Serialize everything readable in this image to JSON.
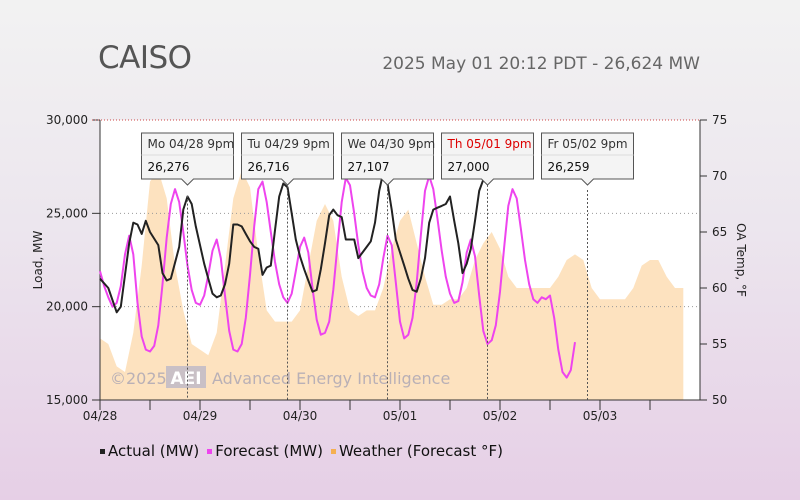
{
  "title": "CAISO",
  "subtitle": "2025 May 01 20:12 PDT - 26,624 MW",
  "watermark": {
    "year": "©2025",
    "logo": "AEI",
    "company": "Advanced Energy Intelligence"
  },
  "legend": {
    "actual": "Actual (MW)",
    "forecast": "Forecast (MW)",
    "weather": "Weather (Forecast °F)"
  },
  "colors": {
    "actual": "#222222",
    "forecast": "#ee44ee",
    "weather": "#fde2bf",
    "weather_legend": "#f5b050"
  },
  "chart_data": {
    "type": "line",
    "x_unit": "hours since 04/28 00:00",
    "xlim": [
      0,
      144
    ],
    "x_ticks": [
      {
        "x": 0,
        "label": "04/28"
      },
      {
        "x": 24,
        "label": "04/29"
      },
      {
        "x": 48,
        "label": "04/30"
      },
      {
        "x": 72,
        "label": "05/01"
      },
      {
        "x": 96,
        "label": "05/02"
      },
      {
        "x": 120,
        "label": "05/03"
      }
    ],
    "ylabel": "Load, MW",
    "ylim": [
      15000,
      30000
    ],
    "y_ticks": [
      "15,000",
      "20,000",
      "25,000",
      "30,000"
    ],
    "y2label": "OA Temp, °F",
    "y2lim": [
      50,
      75
    ],
    "y2_ticks": [
      "50",
      "55",
      "60",
      "65",
      "70",
      "75"
    ],
    "series": [
      {
        "name": "Actual (MW)",
        "points": [
          [
            0,
            21500
          ],
          [
            2,
            21000
          ],
          [
            4,
            19700
          ],
          [
            5,
            20000
          ],
          [
            7,
            23400
          ],
          [
            8,
            24500
          ],
          [
            9,
            24400
          ],
          [
            10,
            23900
          ],
          [
            11,
            24600
          ],
          [
            12,
            24000
          ],
          [
            14,
            23300
          ],
          [
            15,
            21800
          ],
          [
            16,
            21400
          ],
          [
            17,
            21500
          ],
          [
            19,
            23200
          ],
          [
            20,
            25200
          ],
          [
            21,
            25900
          ],
          [
            22,
            25500
          ],
          [
            23,
            24300
          ],
          [
            25,
            22300
          ],
          [
            26,
            21500
          ],
          [
            27,
            20700
          ],
          [
            28,
            20500
          ],
          [
            29,
            20600
          ],
          [
            30,
            21200
          ],
          [
            31,
            22300
          ],
          [
            32,
            24400
          ],
          [
            33,
            24400
          ],
          [
            34,
            24300
          ],
          [
            35,
            23900
          ],
          [
            36,
            23500
          ],
          [
            37,
            23200
          ],
          [
            38,
            23100
          ],
          [
            39,
            21700
          ],
          [
            40,
            22100
          ],
          [
            41,
            22200
          ],
          [
            42,
            24100
          ],
          [
            43,
            25900
          ],
          [
            44,
            26600
          ],
          [
            45,
            26400
          ],
          [
            46,
            25000
          ],
          [
            47,
            23600
          ],
          [
            48,
            22700
          ],
          [
            49,
            22000
          ],
          [
            50,
            21400
          ],
          [
            51,
            20800
          ],
          [
            52,
            20900
          ],
          [
            53,
            22000
          ],
          [
            54,
            23400
          ],
          [
            55,
            24900
          ],
          [
            56,
            25200
          ],
          [
            57,
            24900
          ],
          [
            58,
            24800
          ],
          [
            59,
            23600
          ],
          [
            60,
            23600
          ],
          [
            61,
            23600
          ],
          [
            62,
            22600
          ],
          [
            63,
            22900
          ],
          [
            64,
            23200
          ],
          [
            65,
            23500
          ],
          [
            66,
            24500
          ],
          [
            67,
            26200
          ],
          [
            68,
            27200
          ],
          [
            69,
            26600
          ],
          [
            70,
            25200
          ],
          [
            71,
            23600
          ],
          [
            72,
            22900
          ],
          [
            73,
            22200
          ],
          [
            74,
            21500
          ],
          [
            75,
            20900
          ],
          [
            76,
            20800
          ],
          [
            77,
            21500
          ],
          [
            78,
            22600
          ],
          [
            79,
            24500
          ],
          [
            80,
            25200
          ],
          [
            81,
            25300
          ],
          [
            82,
            25400
          ],
          [
            83,
            25500
          ],
          [
            84,
            25900
          ],
          [
            85,
            24600
          ],
          [
            86,
            23400
          ],
          [
            87,
            21800
          ],
          [
            88,
            22300
          ],
          [
            89,
            23100
          ],
          [
            90,
            24600
          ],
          [
            91,
            26200
          ],
          [
            92,
            26800
          ]
        ]
      },
      {
        "name": "Forecast (MW)",
        "points": [
          [
            0,
            21900
          ],
          [
            1,
            21100
          ],
          [
            2,
            20500
          ],
          [
            3,
            20000
          ],
          [
            4,
            20200
          ],
          [
            5,
            21100
          ],
          [
            6,
            22800
          ],
          [
            7,
            23800
          ],
          [
            8,
            22800
          ],
          [
            9,
            20200
          ],
          [
            10,
            18400
          ],
          [
            11,
            17700
          ],
          [
            12,
            17600
          ],
          [
            13,
            17900
          ],
          [
            14,
            19000
          ],
          [
            15,
            21200
          ],
          [
            16,
            23700
          ],
          [
            17,
            25500
          ],
          [
            18,
            26300
          ],
          [
            19,
            25600
          ],
          [
            20,
            24000
          ],
          [
            21,
            22200
          ],
          [
            22,
            20900
          ],
          [
            23,
            20200
          ],
          [
            24,
            20100
          ],
          [
            25,
            20600
          ],
          [
            26,
            21700
          ],
          [
            27,
            23000
          ],
          [
            28,
            23600
          ],
          [
            29,
            22600
          ],
          [
            30,
            20600
          ],
          [
            31,
            18700
          ],
          [
            32,
            17700
          ],
          [
            33,
            17600
          ],
          [
            34,
            18000
          ],
          [
            35,
            19400
          ],
          [
            36,
            21700
          ],
          [
            37,
            24300
          ],
          [
            38,
            26300
          ],
          [
            39,
            26700
          ],
          [
            40,
            25600
          ],
          [
            41,
            24000
          ],
          [
            42,
            22400
          ],
          [
            43,
            21200
          ],
          [
            44,
            20500
          ],
          [
            45,
            20200
          ],
          [
            46,
            20700
          ],
          [
            47,
            21900
          ],
          [
            48,
            23200
          ],
          [
            49,
            23700
          ],
          [
            50,
            22900
          ],
          [
            51,
            21000
          ],
          [
            52,
            19300
          ],
          [
            53,
            18500
          ],
          [
            54,
            18600
          ],
          [
            55,
            19200
          ],
          [
            56,
            20900
          ],
          [
            57,
            23300
          ],
          [
            58,
            25600
          ],
          [
            59,
            26900
          ],
          [
            60,
            26500
          ],
          [
            61,
            25000
          ],
          [
            62,
            23300
          ],
          [
            63,
            21900
          ],
          [
            64,
            21000
          ],
          [
            65,
            20600
          ],
          [
            66,
            20500
          ],
          [
            67,
            21200
          ],
          [
            68,
            22600
          ],
          [
            69,
            23800
          ],
          [
            70,
            23300
          ],
          [
            71,
            21300
          ],
          [
            72,
            19200
          ],
          [
            73,
            18300
          ],
          [
            74,
            18500
          ],
          [
            75,
            19400
          ],
          [
            76,
            21300
          ],
          [
            77,
            23800
          ],
          [
            78,
            26200
          ],
          [
            79,
            27000
          ],
          [
            80,
            26300
          ],
          [
            81,
            24700
          ],
          [
            82,
            23000
          ],
          [
            83,
            21600
          ],
          [
            84,
            20700
          ],
          [
            85,
            20200
          ],
          [
            86,
            20300
          ],
          [
            87,
            21300
          ],
          [
            88,
            22900
          ],
          [
            89,
            23600
          ],
          [
            90,
            22700
          ],
          [
            91,
            20600
          ],
          [
            92,
            18700
          ],
          [
            93,
            18000
          ],
          [
            94,
            18200
          ],
          [
            95,
            19000
          ],
          [
            96,
            20800
          ],
          [
            97,
            23200
          ],
          [
            98,
            25400
          ],
          [
            99,
            26300
          ],
          [
            100,
            25800
          ],
          [
            101,
            24200
          ],
          [
            102,
            22500
          ],
          [
            103,
            21200
          ],
          [
            104,
            20400
          ],
          [
            105,
            20200
          ],
          [
            106,
            20500
          ],
          [
            107,
            20400
          ],
          [
            108,
            20600
          ],
          [
            109,
            19400
          ],
          [
            110,
            17700
          ],
          [
            111,
            16500
          ],
          [
            112,
            16200
          ],
          [
            113,
            16600
          ],
          [
            114,
            18100
          ]
        ]
      },
      {
        "name": "Weather (Forecast °F)",
        "axis": "right",
        "points": [
          [
            0,
            55.5
          ],
          [
            2,
            55.0
          ],
          [
            4,
            53.0
          ],
          [
            6,
            52.5
          ],
          [
            8,
            56
          ],
          [
            10,
            62
          ],
          [
            12,
            69.5
          ],
          [
            14,
            70.5
          ],
          [
            16,
            68
          ],
          [
            18,
            62
          ],
          [
            20,
            58
          ],
          [
            22,
            55
          ],
          [
            24,
            54.5
          ],
          [
            26,
            54
          ],
          [
            28,
            56
          ],
          [
            30,
            62
          ],
          [
            32,
            68
          ],
          [
            34,
            70.5
          ],
          [
            36,
            69
          ],
          [
            38,
            63
          ],
          [
            40,
            58
          ],
          [
            42,
            57
          ],
          [
            44,
            57
          ],
          [
            46,
            57
          ],
          [
            48,
            58
          ],
          [
            50,
            62
          ],
          [
            52,
            66
          ],
          [
            54,
            67.5
          ],
          [
            56,
            66
          ],
          [
            58,
            61
          ],
          [
            60,
            58
          ],
          [
            62,
            57.5
          ],
          [
            64,
            58
          ],
          [
            66,
            58
          ],
          [
            68,
            60
          ],
          [
            70,
            63.5
          ],
          [
            72,
            66
          ],
          [
            74,
            67
          ],
          [
            76,
            64
          ],
          [
            78,
            61
          ],
          [
            80,
            58.5
          ],
          [
            82,
            58.5
          ],
          [
            84,
            59
          ],
          [
            86,
            59
          ],
          [
            88,
            60
          ],
          [
            90,
            62.5
          ],
          [
            92,
            64
          ],
          [
            94,
            65
          ],
          [
            96,
            63.5
          ],
          [
            98,
            61
          ],
          [
            100,
            60
          ],
          [
            102,
            60
          ],
          [
            104,
            60
          ],
          [
            106,
            60
          ],
          [
            108,
            60
          ],
          [
            110,
            61
          ],
          [
            112,
            62.5
          ],
          [
            114,
            63
          ],
          [
            116,
            62.5
          ],
          [
            118,
            60
          ],
          [
            120,
            59
          ],
          [
            122,
            59
          ],
          [
            124,
            59
          ],
          [
            126,
            59
          ],
          [
            128,
            60
          ],
          [
            130,
            62
          ],
          [
            132,
            62.5
          ],
          [
            134,
            62.5
          ],
          [
            136,
            61
          ],
          [
            138,
            60
          ],
          [
            140,
            60
          ]
        ]
      }
    ],
    "annotations": [
      {
        "x": 21,
        "y": 25950,
        "title": "Mo 04/28 9pm",
        "value": "26,276",
        "highlight": false
      },
      {
        "x": 45,
        "y": 26700,
        "title": "Tu 04/29 9pm",
        "value": "26,716",
        "highlight": false
      },
      {
        "x": 69,
        "y": 27150,
        "title": "We 04/30 9pm",
        "value": "27,107",
        "highlight": false
      },
      {
        "x": 93,
        "y": 26950,
        "title": "Th 05/01 9pm",
        "value": "27,000",
        "highlight": true
      },
      {
        "x": 117,
        "y": 26250,
        "title": "Fr 05/02 9pm",
        "value": "26,259",
        "highlight": false
      }
    ],
    "grid": true,
    "legend_position": "bottom"
  }
}
